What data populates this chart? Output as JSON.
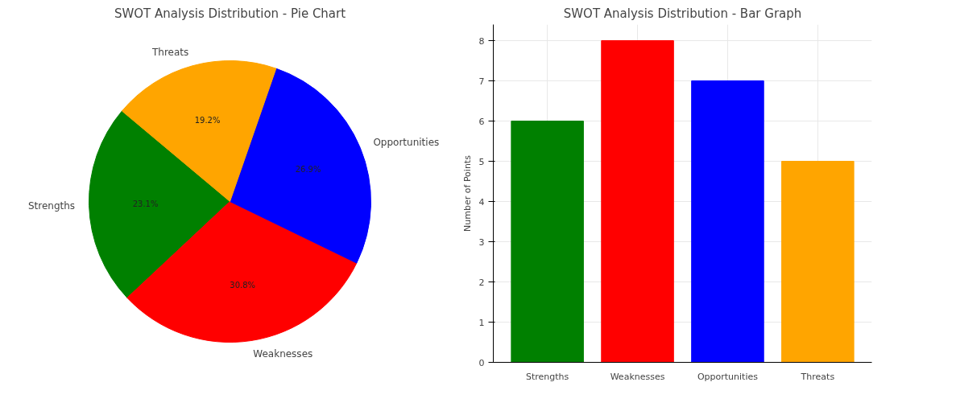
{
  "chart_data": [
    {
      "type": "pie",
      "title": "SWOT Analysis Distribution - Pie Chart",
      "categories": [
        "Strengths",
        "Weaknesses",
        "Opportunities",
        "Threats"
      ],
      "values": [
        23.1,
        30.8,
        26.9,
        19.2
      ],
      "colors": [
        "#008000",
        "#ff0000",
        "#0000ff",
        "#ffa500"
      ],
      "value_labels": [
        "23.1%",
        "30.8%",
        "26.9%",
        "19.2%"
      ]
    },
    {
      "type": "bar",
      "title": "SWOT Analysis Distribution - Bar Graph",
      "ylabel": "Number of Points",
      "categories": [
        "Strengths",
        "Weaknesses",
        "Opportunities",
        "Threats"
      ],
      "values": [
        6,
        8,
        7,
        5
      ],
      "colors": [
        "#008000",
        "#ff0000",
        "#0000ff",
        "#ffa500"
      ],
      "ylim": [
        0,
        8.4
      ],
      "yticks": [
        0,
        1,
        2,
        3,
        4,
        5,
        6,
        7,
        8
      ],
      "grid": true
    }
  ]
}
